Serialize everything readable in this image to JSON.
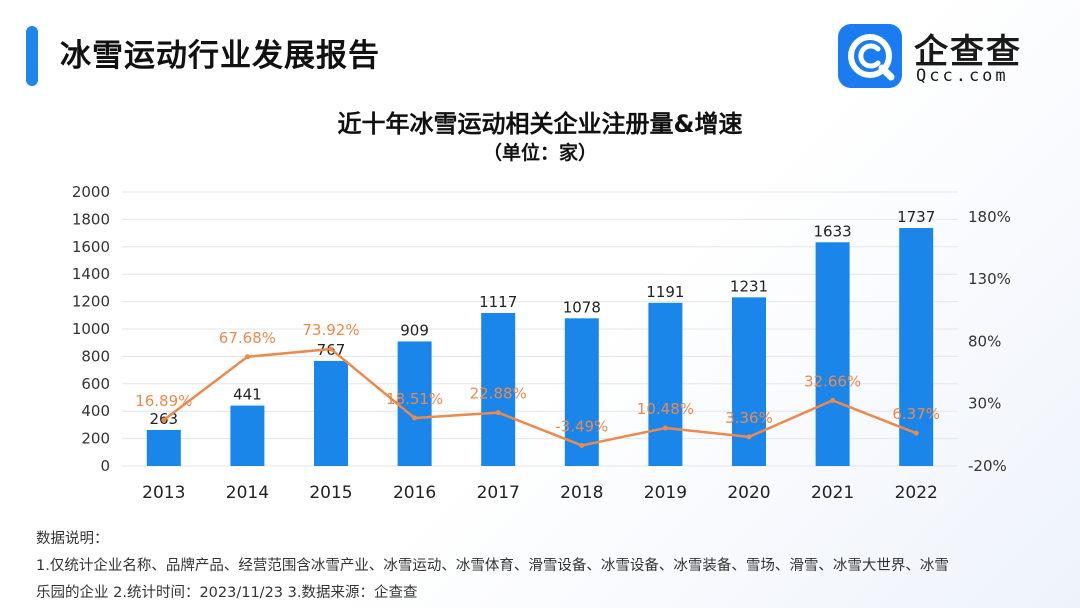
{
  "header": {
    "title": "冰雪运动行业发展报告"
  },
  "logo": {
    "name": "企查查",
    "domain": "Qcc.com",
    "color": "#1a7cf0"
  },
  "chart_data": {
    "type": "bar",
    "title": "近十年冰雪运动相关企业注册量&增速",
    "subtitle": "（单位：家）",
    "categories": [
      "2013",
      "2014",
      "2015",
      "2016",
      "2017",
      "2018",
      "2019",
      "2020",
      "2021",
      "2022"
    ],
    "series": [
      {
        "name": "注册量",
        "type": "bar",
        "axis": "left",
        "color": "#1a86ea",
        "values": [
          263,
          441,
          767,
          909,
          1117,
          1078,
          1191,
          1231,
          1633,
          1737
        ],
        "labels": [
          "263",
          "441",
          "767",
          "909",
          "1117",
          "1078",
          "1191",
          "1231",
          "1633",
          "1737"
        ]
      },
      {
        "name": "增速",
        "type": "line",
        "axis": "right",
        "color": "#ec8a4d",
        "values": [
          16.89,
          67.68,
          73.92,
          18.51,
          22.88,
          -3.49,
          10.48,
          3.36,
          32.66,
          6.37
        ],
        "labels": [
          "16.89%",
          "67.68%",
          "73.92%",
          "18.51%",
          "22.88%",
          "-3.49%",
          "10.48%",
          "3.36%",
          "32.66%",
          "6.37%"
        ]
      }
    ],
    "y_left": {
      "ylim": [
        0,
        2000
      ],
      "ticks": [
        "0",
        "200",
        "400",
        "600",
        "800",
        "1000",
        "1200",
        "1400",
        "1600",
        "1800",
        "2000"
      ]
    },
    "y_right": {
      "ylim": [
        -20,
        200
      ],
      "ticks": [
        "-20%",
        "30%",
        "80%",
        "130%",
        "180%"
      ],
      "tick_values": [
        -20,
        30,
        80,
        130,
        180
      ]
    },
    "grid": true
  },
  "notes": {
    "heading": "数据说明：",
    "line1": "1.仅统计企业名称、品牌产品、经营范围含冰雪产业、冰雪运动、冰雪体育、滑雪设备、冰雪设备、冰雪装备、雪场、滑雪、冰雪大世界、冰雪",
    "line2": "乐园的企业    2.统计时间：2023/11/23    3.数据来源：企查查"
  }
}
